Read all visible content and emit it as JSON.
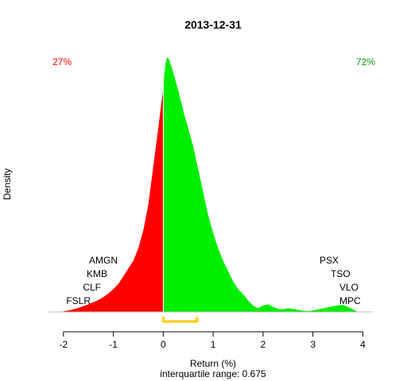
{
  "chart_data": {
    "type": "area",
    "title": "2013-12-31",
    "xlabel": "Return (%)",
    "ylabel": "Density",
    "subtitle": "interquartile range: 0.675",
    "xlim": [
      -2.3,
      4.2
    ],
    "ylim": [
      0,
      1.0
    ],
    "x_ticks": [
      "-2",
      "-1",
      "0",
      "1",
      "2",
      "3",
      "4"
    ],
    "x_tick_values": [
      -2,
      -1,
      0,
      1,
      2,
      3,
      4
    ],
    "split_at": 0,
    "negative_color": "#ff0000",
    "positive_color": "#00ee00",
    "iqr_color": "#ffcc00",
    "iqr": [
      0,
      0.675
    ],
    "negative_share": "27%",
    "positive_share": "72%",
    "negative_tickers": [
      "AMGN",
      "KMB",
      "CLF",
      "FSLR"
    ],
    "positive_tickers": [
      "PSX",
      "TSO",
      "VLO",
      "MPC"
    ],
    "density": {
      "x": [
        -2.0,
        -1.9,
        -1.8,
        -1.7,
        -1.6,
        -1.5,
        -1.4,
        -1.3,
        -1.2,
        -1.1,
        -1.0,
        -0.9,
        -0.8,
        -0.7,
        -0.6,
        -0.5,
        -0.4,
        -0.3,
        -0.2,
        -0.1,
        -0.05,
        0.0,
        0.02,
        0.05,
        0.08,
        0.12,
        0.2,
        0.3,
        0.4,
        0.5,
        0.6,
        0.7,
        0.8,
        0.9,
        1.0,
        1.1,
        1.2,
        1.3,
        1.4,
        1.5,
        1.6,
        1.7,
        1.8,
        1.9,
        2.0,
        2.1,
        2.2,
        2.3,
        2.4,
        2.5,
        2.6,
        2.7,
        2.8,
        2.9,
        3.0,
        3.1,
        3.2,
        3.3,
        3.4,
        3.5,
        3.6,
        3.7,
        3.8,
        3.9
      ],
      "y": [
        0.003,
        0.006,
        0.01,
        0.016,
        0.023,
        0.03,
        0.038,
        0.047,
        0.058,
        0.072,
        0.09,
        0.11,
        0.14,
        0.17,
        0.2,
        0.25,
        0.32,
        0.42,
        0.57,
        0.72,
        0.8,
        0.88,
        0.93,
        0.98,
        1.0,
        0.99,
        0.94,
        0.87,
        0.79,
        0.72,
        0.65,
        0.56,
        0.47,
        0.38,
        0.31,
        0.25,
        0.2,
        0.16,
        0.12,
        0.09,
        0.07,
        0.045,
        0.025,
        0.015,
        0.025,
        0.03,
        0.02,
        0.012,
        0.01,
        0.015,
        0.012,
        0.008,
        0.005,
        0.004,
        0.006,
        0.01,
        0.014,
        0.018,
        0.022,
        0.026,
        0.028,
        0.02,
        0.01,
        0.0
      ]
    }
  }
}
